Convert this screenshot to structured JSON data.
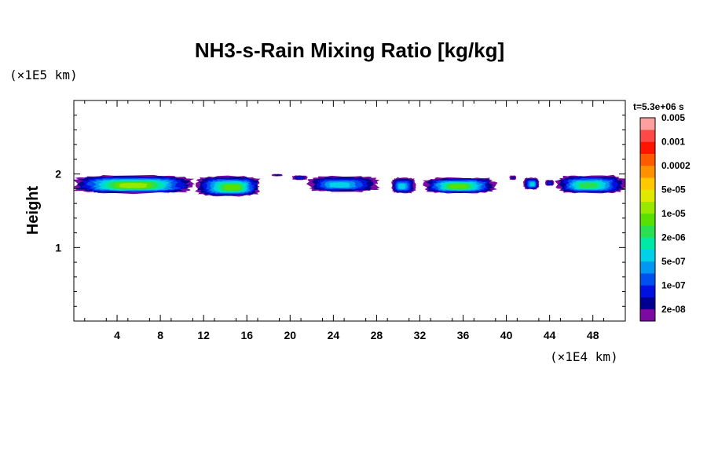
{
  "chart_data": {
    "type": "heatmap",
    "title": "NH3-s-Rain Mixing Ratio [kg/kg]",
    "ylabel": "Height",
    "x_unit": "(×1E4 km)",
    "y_unit": "(×1E5 km)",
    "time_label": "t=5.3e+06 s",
    "xlim": [
      0,
      51
    ],
    "ylim": [
      0,
      3
    ],
    "x_ticks": [
      4,
      8,
      12,
      16,
      20,
      24,
      28,
      32,
      36,
      40,
      44,
      48
    ],
    "y_ticks": [
      1,
      2
    ],
    "colorbar": {
      "colors": [
        "#7a0aa0",
        "#000090",
        "#0010e0",
        "#0050f0",
        "#0098f0",
        "#00d0e8",
        "#00e8a8",
        "#28e050",
        "#58e000",
        "#98e800",
        "#e0e800",
        "#ffc800",
        "#ff9000",
        "#ff5a00",
        "#ff1400",
        "#ff4848",
        "#ffa0a0"
      ],
      "labels": [
        "2e-08",
        "1e-07",
        "5e-07",
        "2e-06",
        "1e-05",
        "5e-05",
        "0.0002",
        "0.001",
        "0.005"
      ]
    },
    "cloud_blobs": [
      {
        "x0": 0.0,
        "x1": 11.0,
        "ybot": 1.74,
        "ytop": 1.98,
        "peak": 9
      },
      {
        "x0": 11.3,
        "x1": 17.2,
        "ybot": 1.7,
        "ytop": 1.97,
        "peak": 8
      },
      {
        "x0": 18.3,
        "x1": 19.3,
        "ybot": 1.97,
        "ytop": 2.0,
        "peak": 1
      },
      {
        "x0": 20.2,
        "x1": 21.6,
        "ybot": 1.92,
        "ytop": 1.98,
        "peak": 2
      },
      {
        "x0": 21.7,
        "x1": 28.2,
        "ybot": 1.76,
        "ytop": 1.97,
        "peak": 5
      },
      {
        "x0": 29.4,
        "x1": 31.6,
        "ybot": 1.74,
        "ytop": 1.95,
        "peak": 5
      },
      {
        "x0": 32.4,
        "x1": 39.0,
        "ybot": 1.74,
        "ytop": 1.95,
        "peak": 8
      },
      {
        "x0": 40.3,
        "x1": 40.9,
        "ybot": 1.92,
        "ytop": 1.98,
        "peak": 1
      },
      {
        "x0": 41.6,
        "x1": 43.0,
        "ybot": 1.79,
        "ytop": 1.95,
        "peak": 5
      },
      {
        "x0": 43.6,
        "x1": 44.4,
        "ybot": 1.84,
        "ytop": 1.92,
        "peak": 2
      },
      {
        "x0": 44.7,
        "x1": 51.0,
        "ybot": 1.74,
        "ytop": 1.98,
        "peak": 7
      }
    ]
  }
}
